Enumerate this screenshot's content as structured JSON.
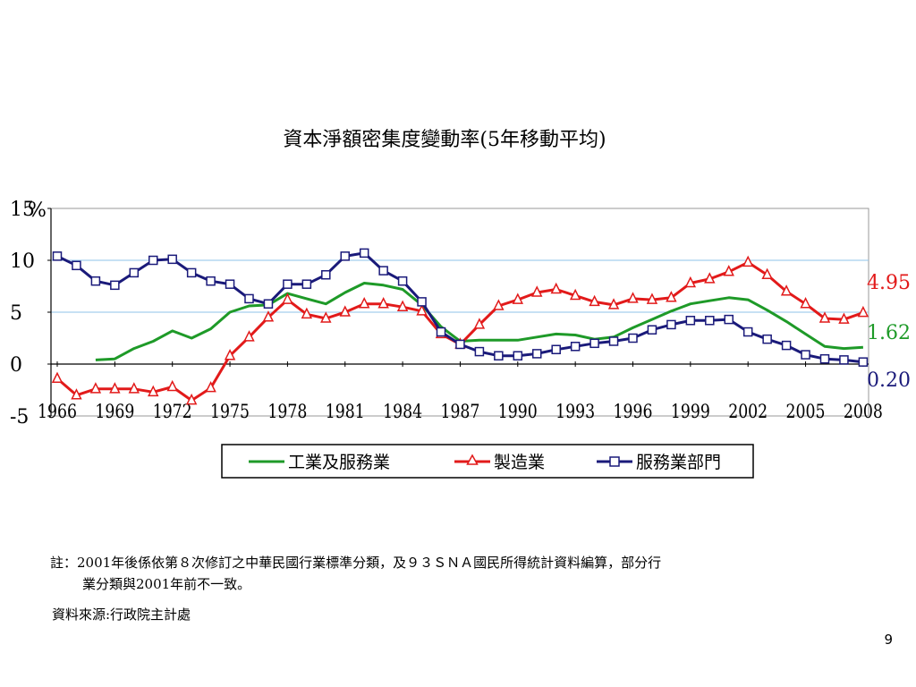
{
  "chart_data": {
    "type": "line",
    "title": "資本淨額密集度變動率(5年移動平均)",
    "y_unit": "%",
    "ylim": [
      -5,
      15
    ],
    "y_ticks": [
      "15",
      "10",
      "5",
      "0",
      "-5"
    ],
    "x_ticks": [
      "1966",
      "1969",
      "1972",
      "1975",
      "1978",
      "1981",
      "1984",
      "1987",
      "1990",
      "1993",
      "1996",
      "1999",
      "2002",
      "2005",
      "2008"
    ],
    "grid": "horizontal",
    "legend_position": "bottom",
    "x": [
      1966,
      1967,
      1968,
      1969,
      1970,
      1971,
      1972,
      1973,
      1974,
      1975,
      1976,
      1977,
      1978,
      1979,
      1980,
      1981,
      1982,
      1983,
      1984,
      1985,
      1986,
      1987,
      1988,
      1989,
      1990,
      1991,
      1992,
      1993,
      1994,
      1995,
      1996,
      1997,
      1998,
      1999,
      2000,
      2001,
      2002,
      2003,
      2004,
      2005,
      2006,
      2007,
      2008
    ],
    "series": [
      {
        "name": "工業及服務業",
        "color": "#1e9a28",
        "marker": "none",
        "values": [
          null,
          null,
          0.4,
          0.5,
          1.5,
          2.2,
          3.2,
          2.5,
          3.4,
          5.0,
          5.6,
          5.7,
          6.8,
          6.3,
          5.8,
          6.9,
          7.8,
          7.6,
          7.2,
          5.7,
          3.6,
          2.2,
          2.3,
          2.3,
          2.3,
          2.6,
          2.9,
          2.8,
          2.4,
          2.6,
          3.5,
          4.3,
          5.1,
          5.8,
          6.1,
          6.4,
          6.2,
          5.2,
          4.1,
          2.9,
          1.7,
          1.5,
          1.62
        ],
        "end_label": "1.62"
      },
      {
        "name": "製造業",
        "color": "#e21a1a",
        "marker": "triangle",
        "values": [
          -1.4,
          -3.0,
          -2.4,
          -2.4,
          -2.4,
          -2.7,
          -2.2,
          -3.5,
          -2.3,
          0.8,
          2.6,
          4.5,
          6.2,
          4.8,
          4.4,
          5.0,
          5.8,
          5.8,
          5.5,
          5.1,
          2.9,
          1.9,
          3.8,
          5.6,
          6.2,
          6.9,
          7.2,
          6.6,
          6.0,
          5.7,
          6.3,
          6.2,
          6.4,
          7.8,
          8.2,
          8.9,
          9.8,
          8.6,
          7.0,
          5.8,
          4.4,
          4.3,
          4.95
        ],
        "end_label": "4.95"
      },
      {
        "name": "服務業部門",
        "color": "#1a1a7a",
        "marker": "square",
        "values": [
          10.4,
          9.5,
          8.0,
          7.6,
          8.8,
          10.0,
          10.1,
          8.8,
          8.0,
          7.7,
          6.3,
          5.8,
          7.7,
          7.7,
          8.6,
          10.4,
          10.7,
          9.0,
          8.0,
          6.0,
          3.1,
          1.9,
          1.2,
          0.8,
          0.8,
          1.0,
          1.4,
          1.7,
          2.0,
          2.2,
          2.5,
          3.3,
          3.8,
          4.2,
          4.2,
          4.3,
          3.1,
          2.4,
          1.8,
          0.9,
          0.5,
          0.4,
          0.2
        ],
        "end_label": "0.20"
      }
    ]
  },
  "footnote": {
    "line1": "註：2001年後係依第８次修訂之中華民國行業標準分類，及９３ＳＮＡ國民所得統計資料編算，部分行",
    "line2": "業分類與2001年前不一致。"
  },
  "source": "資料來源:行政院主計處",
  "page_number": "9"
}
